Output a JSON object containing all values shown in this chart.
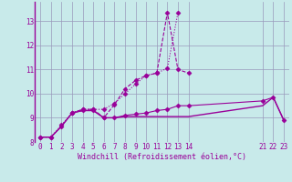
{
  "background_color": "#c8eaea",
  "grid_color": "#9999bb",
  "line_color": "#990099",
  "xlabel": "Windchill (Refroidissement éolien,°C)",
  "xlim": [
    -0.5,
    23.5
  ],
  "ylim": [
    8.0,
    13.8
  ],
  "yticks": [
    8,
    9,
    10,
    11,
    12,
    13
  ],
  "xticks": [
    0,
    1,
    2,
    3,
    4,
    5,
    6,
    7,
    8,
    9,
    10,
    11,
    12,
    13,
    14,
    21,
    22,
    23
  ],
  "series": [
    {
      "x": [
        0,
        1,
        2,
        3,
        4,
        5,
        6,
        7,
        8,
        9,
        10,
        11,
        12,
        13
      ],
      "y": [
        8.2,
        8.2,
        8.7,
        9.2,
        9.35,
        9.35,
        9.35,
        9.6,
        10.0,
        10.4,
        10.75,
        10.85,
        11.05,
        13.35
      ],
      "linestyle": "dotted",
      "marker": "D",
      "markersize": 2.5,
      "linewidth": 0.8
    },
    {
      "x": [
        3,
        4,
        5,
        6,
        7,
        8,
        9,
        10,
        11,
        12,
        13,
        14
      ],
      "y": [
        9.2,
        9.35,
        9.35,
        9.0,
        9.55,
        10.2,
        10.55,
        10.75,
        10.85,
        13.35,
        11.0,
        10.85
      ],
      "linestyle": "--",
      "marker": "D",
      "markersize": 2.5,
      "linewidth": 0.8
    },
    {
      "x": [
        0,
        1,
        2,
        3,
        4,
        5,
        6,
        7,
        8,
        9,
        10,
        11,
        12,
        13,
        14,
        21,
        22,
        23
      ],
      "y": [
        8.2,
        8.2,
        8.65,
        9.2,
        9.3,
        9.3,
        9.0,
        9.0,
        9.05,
        9.05,
        9.05,
        9.05,
        9.05,
        9.05,
        9.05,
        9.5,
        9.85,
        8.9
      ],
      "linestyle": "-",
      "marker": null,
      "markersize": 0,
      "linewidth": 1.0
    },
    {
      "x": [
        0,
        1,
        2,
        3,
        4,
        5,
        6,
        7,
        8,
        9,
        10,
        11,
        12,
        13,
        14,
        21,
        22,
        23
      ],
      "y": [
        8.2,
        8.2,
        8.65,
        9.2,
        9.3,
        9.3,
        9.0,
        9.0,
        9.1,
        9.15,
        9.2,
        9.3,
        9.35,
        9.5,
        9.5,
        9.7,
        9.85,
        8.9
      ],
      "linestyle": "-",
      "marker": "D",
      "markersize": 2.5,
      "linewidth": 0.8
    }
  ]
}
